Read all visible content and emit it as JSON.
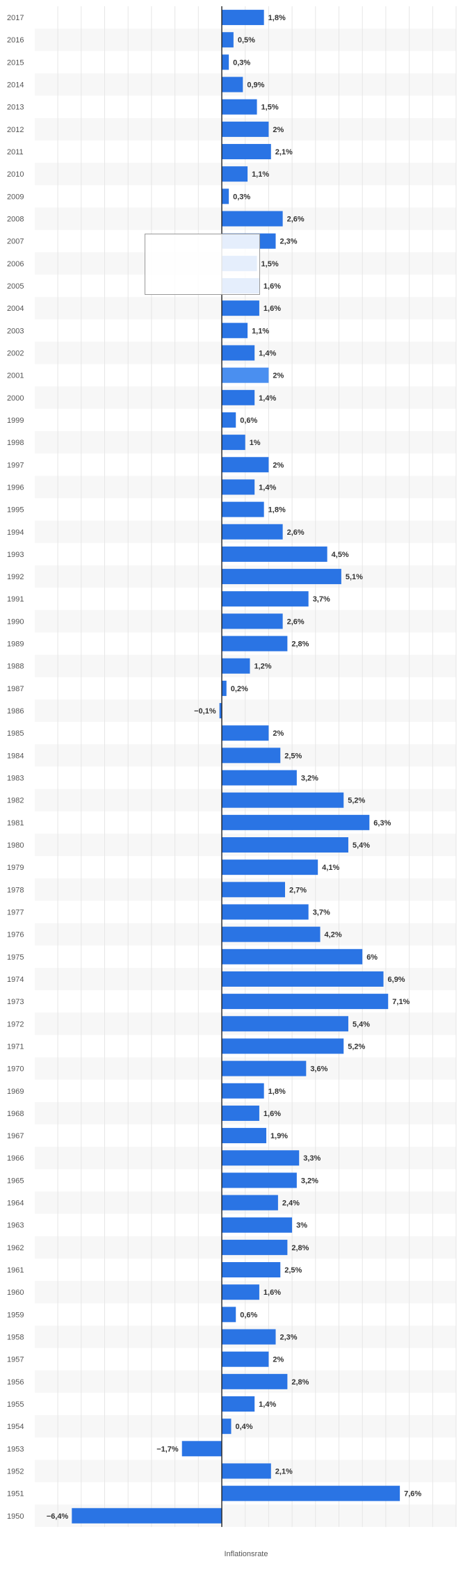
{
  "chart_data": {
    "type": "bar",
    "orientation": "horizontal",
    "xlabel": "Inflationsrate",
    "ylabel": "",
    "xlim": [
      -10,
      5
    ],
    "grid": true,
    "legend": "none",
    "bar_color": "#2a74e4",
    "highlight_color": "#4a8ff0",
    "highlight_category": "2001",
    "categories": [
      "2017",
      "2016",
      "2015",
      "2014",
      "2013",
      "2012",
      "2011",
      "2010",
      "2009",
      "2008",
      "2007",
      "2006",
      "2005",
      "2004",
      "2003",
      "2002",
      "2001",
      "2000",
      "1999",
      "1998",
      "1997",
      "1996",
      "1995",
      "1994",
      "1993",
      "1992",
      "1991",
      "1990",
      "1989",
      "1988",
      "1987",
      "1986",
      "1985",
      "1984",
      "1983",
      "1982",
      "1981",
      "1980",
      "1979",
      "1978",
      "1977",
      "1976",
      "1975",
      "1974",
      "1973",
      "1972",
      "1971",
      "1970",
      "1969",
      "1968",
      "1967",
      "1966",
      "1965",
      "1964",
      "1963",
      "1962",
      "1961",
      "1960",
      "1959",
      "1958",
      "1957",
      "1956",
      "1955",
      "1954",
      "1953",
      "1952",
      "1951",
      "1950"
    ],
    "values": [
      1.8,
      0.5,
      0.3,
      0.9,
      1.5,
      2,
      2.1,
      1.1,
      0.3,
      2.6,
      2.3,
      1.5,
      1.6,
      1.6,
      1.1,
      1.4,
      2,
      1.4,
      0.6,
      1,
      2,
      1.4,
      1.8,
      2.6,
      4.5,
      5.1,
      3.7,
      2.6,
      2.8,
      1.2,
      0.2,
      -0.1,
      2,
      2.5,
      3.2,
      5.2,
      6.3,
      5.4,
      4.1,
      2.7,
      3.7,
      4.2,
      6,
      6.9,
      7.1,
      5.4,
      5.2,
      3.6,
      1.8,
      1.6,
      1.9,
      3.3,
      3.2,
      2.4,
      3,
      2.8,
      2.5,
      1.6,
      0.6,
      2.3,
      2,
      2.8,
      1.4,
      0.4,
      -1.7,
      2.1,
      7.6,
      -6.4
    ],
    "value_labels": [
      "1,8%",
      "0,5%",
      "0,3%",
      "0,9%",
      "1,5%",
      "2%",
      "2,1%",
      "1,1%",
      "0,3%",
      "2,6%",
      "2,3%",
      "1,5%",
      "1,6%",
      "1,6%",
      "1,1%",
      "1,4%",
      "2%",
      "1,4%",
      "0,6%",
      "1%",
      "2%",
      "1,4%",
      "1,8%",
      "2,6%",
      "4,5%",
      "5,1%",
      "3,7%",
      "2,6%",
      "2,8%",
      "1,2%",
      "0,2%",
      "−0,1%",
      "2%",
      "2,5%",
      "3,2%",
      "5,2%",
      "6,3%",
      "5,4%",
      "4,1%",
      "2,7%",
      "3,7%",
      "4,2%",
      "6%",
      "6,9%",
      "7,1%",
      "5,4%",
      "5,2%",
      "3,6%",
      "1,8%",
      "1,6%",
      "1,9%",
      "3,3%",
      "3,2%",
      "2,4%",
      "3%",
      "2,8%",
      "2,5%",
      "1,6%",
      "0,6%",
      "2,3%",
      "2%",
      "2,8%",
      "1,4%",
      "0,4%",
      "−1,7%",
      "2,1%",
      "7,6%",
      "−6,4%"
    ]
  }
}
